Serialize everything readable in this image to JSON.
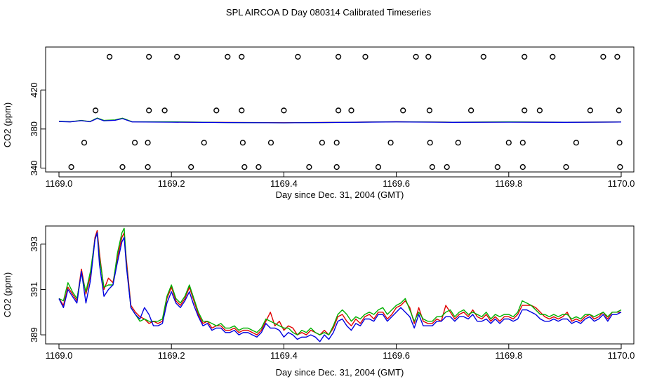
{
  "figure": {
    "title": "SPL AIRCOA D  Day 080314  Calibrated Timeseries"
  },
  "series_colors": {
    "red": "#e00000",
    "green": "#00b000",
    "blue": "#0000e0"
  },
  "chart_data": [
    {
      "type": "scatter",
      "panel": "top",
      "title": "",
      "xlabel": "Day since Dec. 31, 2004 (GMT)",
      "ylabel": "CO2 (ppm)",
      "xlim": [
        1169.0,
        1170.0
      ],
      "ylim": [
        336,
        464
      ],
      "x_ticks": [
        1169.0,
        1169.2,
        1169.4,
        1169.6,
        1169.8,
        1170.0
      ],
      "x_tick_labels": [
        "1169.0",
        "1169.2",
        "1169.4",
        "1169.6",
        "1169.8",
        "1170.0"
      ],
      "y_ticks": [
        340,
        380,
        420
      ],
      "y_tick_labels": [
        "340",
        "380",
        "420"
      ],
      "open_circles": {
        "x": [
          1169.09,
          1169.16,
          1169.21,
          1169.3,
          1169.325,
          1169.425,
          1169.497,
          1169.545,
          1169.635,
          1169.657,
          1169.755,
          1169.828,
          1169.878,
          1169.968,
          1169.993,
          1169.065,
          1169.16,
          1169.188,
          1169.28,
          1169.325,
          1169.4,
          1169.497,
          1169.52,
          1169.612,
          1169.659,
          1169.733,
          1169.828,
          1169.855,
          1169.945,
          1169.996,
          1169.045,
          1169.135,
          1169.158,
          1169.258,
          1169.327,
          1169.377,
          1169.468,
          1169.494,
          1169.59,
          1169.66,
          1169.71,
          1169.8,
          1169.825,
          1169.92,
          1169.997,
          1169.022,
          1169.113,
          1169.158,
          1169.235,
          1169.33,
          1169.355,
          1169.445,
          1169.494,
          1169.568,
          1169.664,
          1169.69,
          1169.78,
          1169.825,
          1169.902,
          1169.998
        ],
        "y": [
          454,
          454,
          454,
          454,
          454,
          454,
          454,
          454,
          454,
          454,
          454,
          454,
          454,
          454,
          454,
          399,
          399,
          399,
          399,
          399,
          399,
          399,
          399,
          399,
          399,
          399,
          399,
          399,
          399,
          399,
          366,
          366,
          366,
          366,
          366,
          366,
          366,
          366,
          366,
          366,
          366,
          366,
          366,
          366,
          366,
          341,
          341,
          341,
          341,
          341,
          341,
          341,
          341,
          341,
          341,
          341,
          341,
          341,
          341,
          341
        ]
      },
      "series": [
        {
          "name": "red",
          "color": "#e00000",
          "x": [
            1169.0,
            1169.02,
            1169.04,
            1169.055,
            1169.068,
            1169.08,
            1169.1,
            1169.113,
            1169.13,
            1169.2,
            1169.3,
            1169.4,
            1169.5,
            1169.6,
            1169.7,
            1169.8,
            1169.9,
            1170.0
          ],
          "y": [
            390.6,
            390.3,
            391.3,
            390.4,
            393.1,
            391.3,
            391.6,
            393.0,
            390.3,
            390.1,
            389.8,
            389.6,
            389.9,
            390.4,
            390.0,
            390.1,
            390.0,
            390.1
          ]
        },
        {
          "name": "green",
          "color": "#00b000",
          "x": [
            1169.0,
            1169.02,
            1169.04,
            1169.055,
            1169.068,
            1169.08,
            1169.1,
            1169.113,
            1169.13,
            1169.2,
            1169.3,
            1169.4,
            1169.5,
            1169.6,
            1169.7,
            1169.8,
            1169.9,
            1170.0
          ],
          "y": [
            390.7,
            390.4,
            391.4,
            390.5,
            393.3,
            391.4,
            391.8,
            393.2,
            390.4,
            390.3,
            389.7,
            389.5,
            389.8,
            390.3,
            390.0,
            390.2,
            390.0,
            390.1
          ]
        },
        {
          "name": "blue",
          "color": "#0000e0",
          "x": [
            1169.0,
            1169.02,
            1169.04,
            1169.055,
            1169.068,
            1169.08,
            1169.1,
            1169.113,
            1169.13,
            1169.2,
            1169.3,
            1169.4,
            1169.5,
            1169.6,
            1169.7,
            1169.8,
            1169.9,
            1170.0
          ],
          "y": [
            390.5,
            390.2,
            391.2,
            390.3,
            392.9,
            391.1,
            391.5,
            392.8,
            390.2,
            390.0,
            389.7,
            389.5,
            389.8,
            390.2,
            389.9,
            390.0,
            389.9,
            390.1
          ]
        }
      ]
    },
    {
      "type": "line",
      "panel": "bottom",
      "title": "",
      "xlabel": "Day since Dec. 31, 2004 (GMT)",
      "ylabel": "CO2 (ppm)",
      "xlim": [
        1169.0,
        1170.0
      ],
      "ylim": [
        388.6,
        393.8
      ],
      "x_ticks": [
        1169.0,
        1169.2,
        1169.4,
        1169.6,
        1169.8,
        1170.0
      ],
      "x_tick_labels": [
        "1169.0",
        "1169.2",
        "1169.4",
        "1169.6",
        "1169.8",
        "1170.0"
      ],
      "y_ticks": [
        389,
        391,
        393
      ],
      "y_tick_labels": [
        "389",
        "391",
        "393"
      ],
      "x": [
        1169.0,
        1169.008,
        1169.016,
        1169.024,
        1169.032,
        1169.04,
        1169.048,
        1169.056,
        1169.064,
        1169.068,
        1169.072,
        1169.08,
        1169.088,
        1169.096,
        1169.104,
        1169.112,
        1169.116,
        1169.12,
        1169.128,
        1169.136,
        1169.144,
        1169.152,
        1169.16,
        1169.168,
        1169.176,
        1169.184,
        1169.192,
        1169.2,
        1169.208,
        1169.216,
        1169.224,
        1169.232,
        1169.24,
        1169.248,
        1169.256,
        1169.264,
        1169.272,
        1169.28,
        1169.288,
        1169.296,
        1169.304,
        1169.312,
        1169.32,
        1169.328,
        1169.336,
        1169.344,
        1169.352,
        1169.36,
        1169.368,
        1169.376,
        1169.384,
        1169.392,
        1169.4,
        1169.408,
        1169.416,
        1169.424,
        1169.432,
        1169.44,
        1169.448,
        1169.456,
        1169.464,
        1169.472,
        1169.48,
        1169.488,
        1169.496,
        1169.504,
        1169.512,
        1169.52,
        1169.528,
        1169.536,
        1169.544,
        1169.552,
        1169.56,
        1169.568,
        1169.576,
        1169.584,
        1169.592,
        1169.6,
        1169.608,
        1169.616,
        1169.624,
        1169.632,
        1169.64,
        1169.648,
        1169.656,
        1169.664,
        1169.672,
        1169.68,
        1169.688,
        1169.696,
        1169.704,
        1169.712,
        1169.72,
        1169.728,
        1169.736,
        1169.744,
        1169.752,
        1169.76,
        1169.768,
        1169.776,
        1169.784,
        1169.792,
        1169.8,
        1169.808,
        1169.816,
        1169.824,
        1169.832,
        1169.84,
        1169.848,
        1169.856,
        1169.864,
        1169.872,
        1169.88,
        1169.888,
        1169.896,
        1169.904,
        1169.912,
        1169.92,
        1169.928,
        1169.936,
        1169.944,
        1169.952,
        1169.96,
        1169.968,
        1169.976,
        1169.984,
        1169.992,
        1170.0
      ],
      "series": [
        {
          "name": "red",
          "color": "#e00000",
          "y": [
            390.6,
            390.3,
            391.1,
            390.8,
            390.5,
            391.9,
            390.8,
            391.6,
            393.3,
            393.6,
            392.6,
            391.0,
            391.5,
            391.3,
            392.4,
            393.3,
            393.5,
            392.3,
            390.3,
            390.0,
            389.8,
            389.7,
            389.5,
            389.6,
            389.5,
            389.6,
            390.6,
            391.1,
            390.5,
            390.3,
            390.6,
            391.1,
            390.5,
            389.9,
            389.5,
            389.6,
            389.3,
            389.4,
            389.4,
            389.2,
            389.2,
            389.3,
            389.1,
            389.2,
            389.2,
            389.1,
            389.0,
            389.2,
            389.6,
            390.0,
            389.4,
            389.6,
            389.2,
            389.4,
            389.3,
            389.0,
            389.1,
            389.0,
            389.2,
            389.1,
            389.0,
            389.2,
            389.0,
            389.3,
            389.8,
            389.9,
            389.6,
            389.4,
            389.7,
            389.5,
            389.8,
            389.9,
            389.7,
            390.0,
            390.0,
            389.7,
            389.9,
            390.2,
            390.3,
            390.5,
            390.2,
            389.5,
            390.2,
            389.6,
            389.5,
            389.5,
            389.7,
            389.6,
            390.3,
            390.0,
            389.7,
            389.9,
            390.0,
            389.8,
            390.1,
            389.8,
            389.7,
            389.9,
            389.6,
            389.8,
            389.6,
            389.8,
            389.8,
            389.7,
            389.9,
            390.3,
            390.3,
            390.3,
            390.2,
            390.0,
            389.8,
            389.7,
            389.8,
            389.7,
            389.8,
            390.0,
            389.6,
            389.7,
            389.6,
            389.8,
            389.9,
            389.7,
            389.8,
            390.0,
            389.7,
            390.0,
            390.0,
            390.0
          ]
        },
        {
          "name": "green",
          "color": "#00b000",
          "y": [
            390.6,
            390.5,
            391.3,
            390.9,
            390.6,
            391.7,
            390.9,
            391.8,
            393.2,
            393.5,
            392.4,
            391.1,
            391.2,
            391.2,
            392.6,
            393.5,
            393.7,
            392.1,
            390.2,
            389.9,
            389.6,
            389.7,
            389.6,
            389.6,
            389.6,
            389.7,
            390.7,
            391.2,
            390.6,
            390.4,
            390.7,
            391.2,
            390.6,
            390.0,
            389.6,
            389.6,
            389.5,
            389.4,
            389.5,
            389.3,
            389.3,
            389.4,
            389.2,
            389.3,
            389.3,
            389.2,
            389.1,
            389.3,
            389.7,
            389.6,
            389.5,
            389.4,
            389.3,
            389.3,
            389.1,
            389.0,
            389.2,
            389.1,
            389.3,
            389.1,
            389.0,
            389.1,
            389.0,
            389.4,
            389.9,
            390.1,
            389.9,
            389.6,
            389.8,
            389.7,
            389.9,
            390.0,
            389.9,
            390.1,
            390.2,
            389.9,
            390.1,
            390.3,
            390.4,
            390.6,
            390.1,
            389.6,
            390.0,
            389.7,
            389.6,
            389.6,
            389.8,
            389.8,
            390.0,
            390.1,
            389.8,
            390.0,
            390.1,
            389.9,
            390.0,
            389.9,
            389.8,
            390.0,
            389.7,
            389.9,
            389.8,
            389.9,
            389.9,
            389.8,
            390.0,
            390.5,
            390.4,
            390.3,
            390.1,
            389.9,
            389.9,
            389.8,
            389.9,
            389.8,
            389.9,
            389.9,
            389.7,
            389.8,
            389.7,
            389.9,
            389.9,
            389.8,
            389.9,
            390.0,
            389.8,
            390.0,
            390.0,
            390.1
          ]
        },
        {
          "name": "blue",
          "color": "#0000e0",
          "y": [
            390.6,
            390.2,
            391.0,
            390.7,
            390.4,
            391.8,
            390.4,
            391.4,
            393.2,
            393.5,
            392.1,
            390.7,
            391.0,
            391.2,
            392.2,
            393.1,
            393.3,
            392.0,
            390.2,
            389.9,
            389.7,
            390.2,
            389.9,
            389.4,
            389.4,
            389.5,
            390.4,
            390.9,
            390.4,
            390.2,
            390.5,
            390.9,
            390.3,
            389.8,
            389.4,
            389.5,
            389.2,
            389.3,
            389.3,
            389.1,
            389.1,
            389.2,
            389.0,
            389.1,
            389.1,
            389.0,
            388.9,
            389.1,
            389.5,
            389.3,
            389.3,
            389.2,
            388.9,
            389.1,
            389.0,
            388.8,
            388.9,
            388.9,
            389.0,
            388.9,
            388.7,
            389.0,
            388.8,
            389.1,
            389.6,
            389.7,
            389.4,
            389.2,
            389.5,
            389.4,
            389.7,
            389.7,
            389.6,
            389.9,
            389.9,
            389.6,
            389.8,
            390.0,
            390.2,
            390.0,
            389.8,
            389.3,
            389.9,
            389.4,
            389.4,
            389.4,
            389.6,
            389.6,
            389.8,
            389.8,
            389.6,
            389.8,
            389.8,
            389.7,
            389.9,
            389.6,
            389.6,
            389.7,
            389.5,
            389.7,
            389.5,
            389.7,
            389.7,
            389.6,
            389.7,
            390.1,
            390.1,
            390.0,
            389.9,
            389.7,
            389.6,
            389.6,
            389.7,
            389.6,
            389.7,
            389.7,
            389.5,
            389.6,
            389.5,
            389.7,
            389.8,
            389.6,
            389.7,
            389.9,
            389.6,
            389.9,
            389.9,
            390.0
          ]
        }
      ]
    }
  ]
}
